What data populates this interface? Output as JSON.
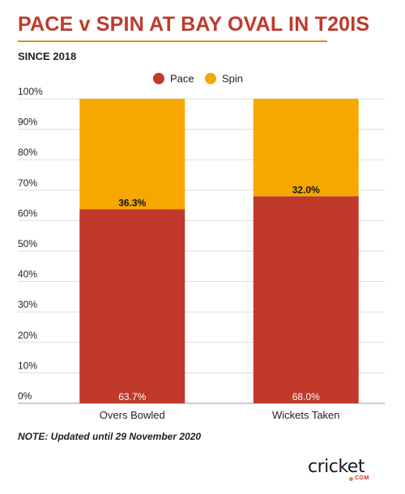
{
  "title": "PACE v SPIN AT BAY OVAL IN T20IS",
  "subtitle": "SINCE 2018",
  "note": "NOTE: Updated until 29 November 2020",
  "logo": {
    "word": "cricket",
    "sub": "COM"
  },
  "colors": {
    "pace": "#c0392b",
    "spin": "#f7a800",
    "title": "#c0392b",
    "rule": "#e08a2a",
    "grid": "#dddddd"
  },
  "chart_data": {
    "type": "bar",
    "stacked": true,
    "categories": [
      "Overs Bowled",
      "Wickets Taken"
    ],
    "series": [
      {
        "name": "Pace",
        "values": [
          63.7,
          68.0
        ],
        "labels": [
          "63.7%",
          "68.0%"
        ],
        "color": "#c0392b"
      },
      {
        "name": "Spin",
        "values": [
          36.3,
          32.0
        ],
        "labels": [
          "36.3%",
          "32.0%"
        ],
        "color": "#f7a800"
      }
    ],
    "ylim": [
      0,
      100
    ],
    "yticks": [
      "0%",
      "10%",
      "20%",
      "30%",
      "40%",
      "50%",
      "60%",
      "70%",
      "80%",
      "90%",
      "100%"
    ],
    "legend": "top-center",
    "grid": true
  }
}
